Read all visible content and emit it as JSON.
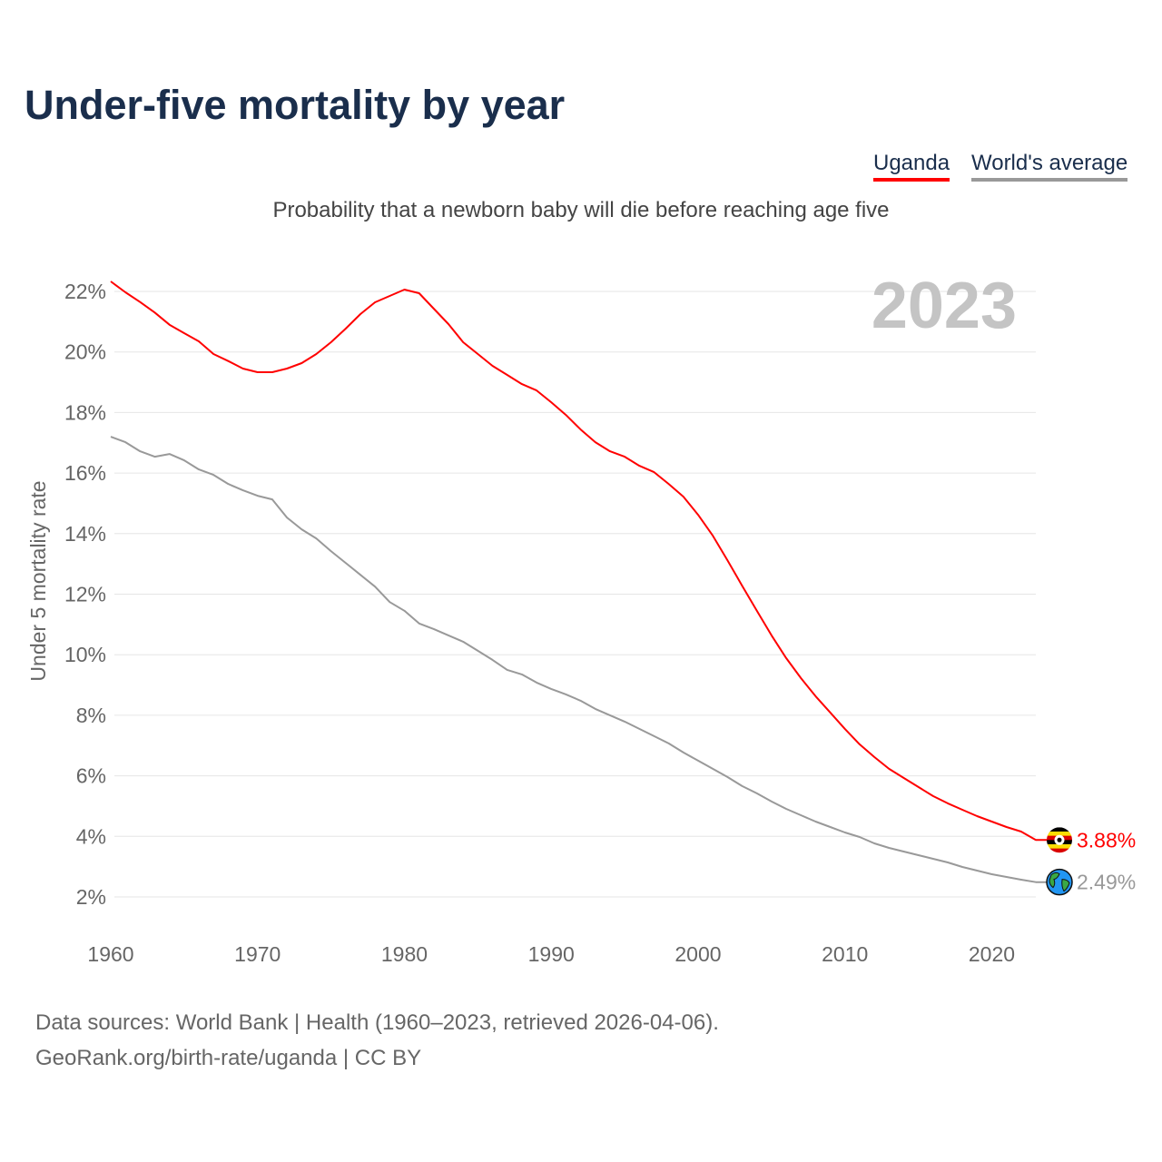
{
  "title": "Under-five mortality by year",
  "legend": [
    {
      "label": "Uganda",
      "color": "#ff0000"
    },
    {
      "label": "World's average",
      "color": "#999999"
    }
  ],
  "subtitle": "Probability that a newborn baby will die before reaching age five",
  "source_line1": "Data sources: World Bank | Health (1960–2023, retrieved 2026-04-06).",
  "source_line2": "GeoRank.org/birth-rate/uganda | CC BY",
  "chart_data": {
    "type": "line",
    "title": "Under-five mortality by year",
    "ylabel": "Under 5 mortality rate",
    "xlabel": "",
    "year_label": "2023",
    "xlim": [
      1960,
      2023
    ],
    "ylim": [
      1,
      23
    ],
    "xticks": [
      1960,
      1970,
      1980,
      1990,
      2000,
      2010,
      2020
    ],
    "yticks": [
      2,
      4,
      6,
      8,
      10,
      12,
      14,
      16,
      18,
      20,
      22
    ],
    "ytick_suffix": "%",
    "grid": true,
    "x": [
      1960,
      1961,
      1962,
      1963,
      1964,
      1965,
      1966,
      1967,
      1968,
      1969,
      1970,
      1971,
      1972,
      1973,
      1974,
      1975,
      1976,
      1977,
      1978,
      1979,
      1980,
      1981,
      1982,
      1983,
      1984,
      1985,
      1986,
      1987,
      1988,
      1989,
      1990,
      1991,
      1992,
      1993,
      1994,
      1995,
      1996,
      1997,
      1998,
      1999,
      2000,
      2001,
      2002,
      2003,
      2004,
      2005,
      2006,
      2007,
      2008,
      2009,
      2010,
      2011,
      2012,
      2013,
      2014,
      2015,
      2016,
      2017,
      2018,
      2019,
      2020,
      2021,
      2022,
      2023
    ],
    "series": [
      {
        "name": "Uganda",
        "color": "#ff0000",
        "end_label": "3.88%",
        "values": [
          22.33,
          21.97,
          21.65,
          21.3,
          20.9,
          20.62,
          20.35,
          19.93,
          19.7,
          19.45,
          19.33,
          19.33,
          19.45,
          19.63,
          19.93,
          20.32,
          20.77,
          21.25,
          21.64,
          21.85,
          22.06,
          21.94,
          21.43,
          20.92,
          20.32,
          19.93,
          19.54,
          19.24,
          18.94,
          18.73,
          18.34,
          17.92,
          17.44,
          17.02,
          16.72,
          16.54,
          16.24,
          16.03,
          15.64,
          15.22,
          14.62,
          13.93,
          13.12,
          12.28,
          11.45,
          10.64,
          9.89,
          9.23,
          8.63,
          8.09,
          7.55,
          7.04,
          6.62,
          6.23,
          5.93,
          5.63,
          5.33,
          5.09,
          4.88,
          4.67,
          4.49,
          4.31,
          4.16,
          3.88
        ]
      },
      {
        "name": "World's average",
        "color": "#999999",
        "end_label": "2.49%",
        "values": [
          17.2,
          17.02,
          16.72,
          16.54,
          16.63,
          16.42,
          16.12,
          15.94,
          15.64,
          15.43,
          15.25,
          15.13,
          14.53,
          14.14,
          13.84,
          13.42,
          13.03,
          12.64,
          12.25,
          11.74,
          11.45,
          11.03,
          10.85,
          10.64,
          10.43,
          10.13,
          9.83,
          9.5,
          9.35,
          9.08,
          8.87,
          8.69,
          8.48,
          8.21,
          8.0,
          7.79,
          7.55,
          7.31,
          7.07,
          6.77,
          6.5,
          6.23,
          5.96,
          5.66,
          5.42,
          5.15,
          4.91,
          4.7,
          4.49,
          4.31,
          4.13,
          3.98,
          3.77,
          3.62,
          3.5,
          3.38,
          3.26,
          3.14,
          2.99,
          2.87,
          2.75,
          2.66,
          2.57,
          2.49
        ]
      }
    ]
  }
}
